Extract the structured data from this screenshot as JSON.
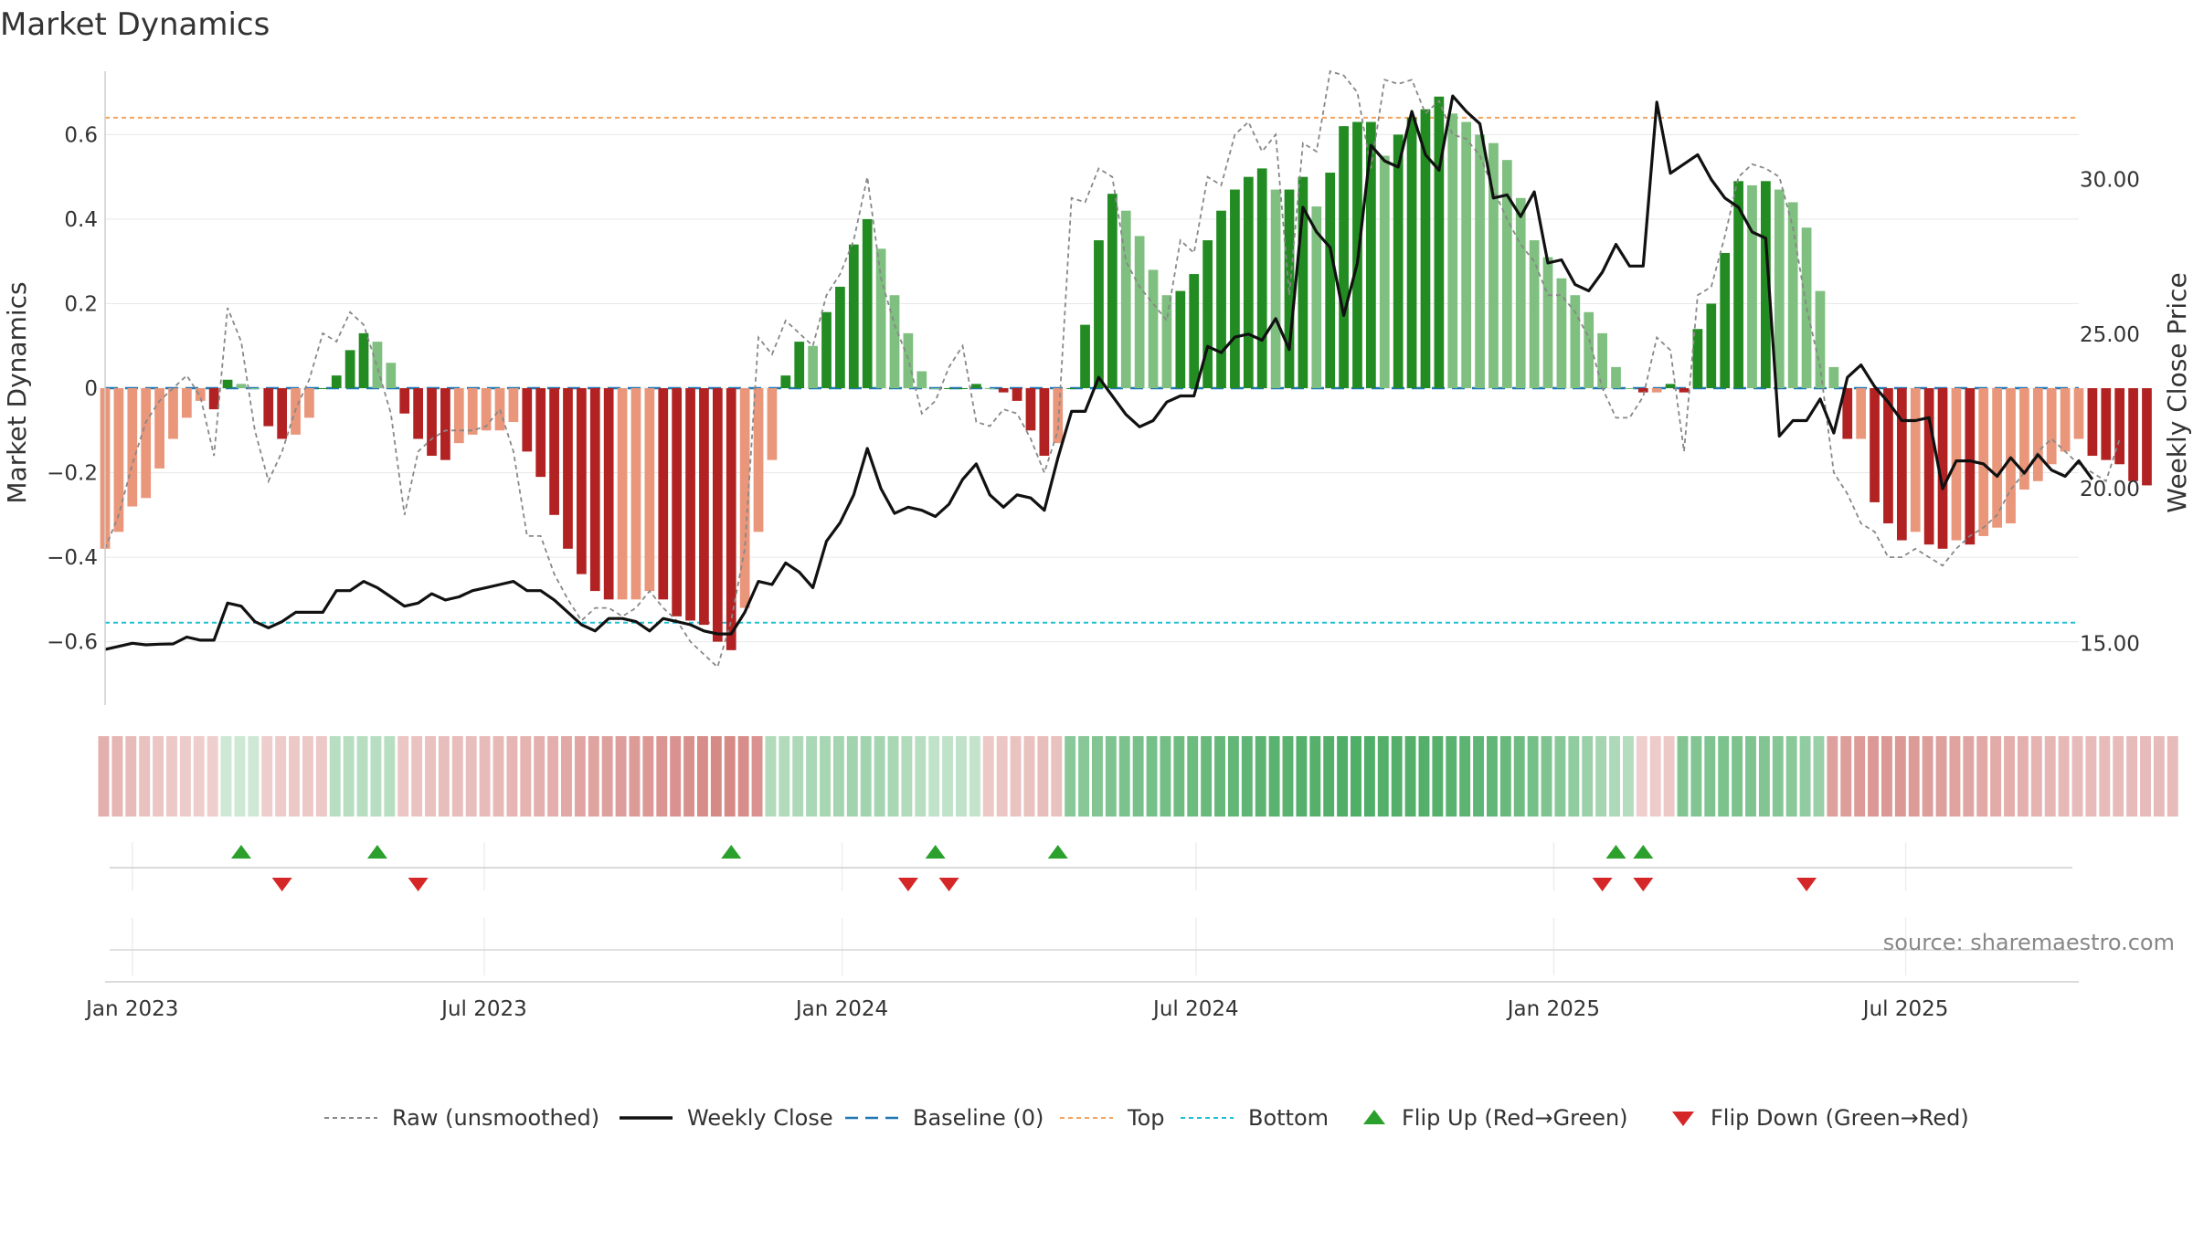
{
  "chart_data": {
    "type": "bar",
    "title": "Market Dynamics",
    "ylabel_left": "Market Dynamics",
    "ylabel_right": "Weekly Close Price",
    "ylim_left": [
      -0.75,
      0.75
    ],
    "ylim_right": [
      13.0,
      33.5
    ],
    "left_ticks": [
      {
        "v": 0.6,
        "label": "0.6"
      },
      {
        "v": 0.4,
        "label": "0.4"
      },
      {
        "v": 0.2,
        "label": "0.2"
      },
      {
        "v": 0,
        "label": "0"
      },
      {
        "v": -0.2,
        "label": "−0.2"
      },
      {
        "v": -0.4,
        "label": "−0.4"
      },
      {
        "v": -0.6,
        "label": "−0.6"
      }
    ],
    "right_ticks": [
      {
        "v": 30,
        "label": "30.00"
      },
      {
        "v": 25,
        "label": "25.00"
      },
      {
        "v": 20,
        "label": "20.00"
      },
      {
        "v": 15,
        "label": "15.00"
      }
    ],
    "x_ticks": [
      {
        "date": "2023-01-01",
        "label": "Jan 2023"
      },
      {
        "date": "2023-07-01",
        "label": "Jul 2023"
      },
      {
        "date": "2024-01-01",
        "label": "Jan 2024"
      },
      {
        "date": "2024-07-01",
        "label": "Jul 2024"
      },
      {
        "date": "2025-01-01",
        "label": "Jan 2025"
      },
      {
        "date": "2025-07-01",
        "label": "Jul 2025"
      }
    ],
    "x_start": "2022-12-18",
    "x_end": "2025-09-28",
    "start_date": "2022-12-18",
    "week_days": 7,
    "top_level": 0.64,
    "bottom_level": -0.555,
    "baseline": 0,
    "dynamics": [
      -0.38,
      -0.34,
      -0.28,
      -0.26,
      -0.19,
      -0.12,
      -0.07,
      -0.03,
      -0.05,
      0.02,
      0.01,
      0.0,
      -0.09,
      -0.12,
      -0.11,
      -0.07,
      0.0,
      0.03,
      0.09,
      0.13,
      0.11,
      0.06,
      -0.06,
      -0.12,
      -0.16,
      -0.17,
      -0.13,
      -0.11,
      -0.1,
      -0.1,
      -0.08,
      -0.15,
      -0.21,
      -0.3,
      -0.38,
      -0.44,
      -0.48,
      -0.5,
      -0.5,
      -0.5,
      -0.48,
      -0.5,
      -0.54,
      -0.55,
      -0.56,
      -0.6,
      -0.62,
      -0.52,
      -0.34,
      -0.17,
      0.03,
      0.11,
      0.1,
      0.18,
      0.24,
      0.34,
      0.4,
      0.33,
      0.22,
      0.13,
      0.04,
      0.0,
      0.0,
      0.0,
      0.01,
      0.0,
      -0.01,
      -0.03,
      -0.1,
      -0.16,
      -0.13,
      0.0,
      0.15,
      0.35,
      0.46,
      0.42,
      0.36,
      0.28,
      0.22,
      0.23,
      0.27,
      0.35,
      0.42,
      0.47,
      0.5,
      0.52,
      0.47,
      0.47,
      0.5,
      0.43,
      0.51,
      0.62,
      0.63,
      0.63,
      0.55,
      0.6,
      0.64,
      0.66,
      0.69,
      0.65,
      0.63,
      0.6,
      0.58,
      0.54,
      0.45,
      0.35,
      0.31,
      0.26,
      0.22,
      0.18,
      0.13,
      0.05,
      0.0,
      -0.01,
      -0.01,
      0.01,
      -0.01,
      0.14,
      0.2,
      0.32,
      0.49,
      0.48,
      0.49,
      0.47,
      0.44,
      0.38,
      0.23,
      0.05,
      -0.12,
      -0.12,
      -0.27,
      -0.32,
      -0.36,
      -0.34,
      -0.37,
      -0.38,
      -0.36,
      -0.37,
      -0.35,
      -0.33,
      -0.32,
      -0.24,
      -0.22,
      -0.18,
      -0.15,
      -0.12,
      -0.16,
      -0.17,
      -0.18,
      -0.22,
      -0.23
    ],
    "raw": [
      -0.38,
      -0.3,
      -0.18,
      -0.08,
      -0.03,
      0.0,
      0.03,
      -0.02,
      -0.16,
      0.19,
      0.11,
      -0.1,
      -0.22,
      -0.15,
      -0.05,
      0.02,
      0.13,
      0.11,
      0.18,
      0.15,
      0.05,
      -0.06,
      -0.3,
      -0.15,
      -0.12,
      -0.1,
      -0.1,
      -0.1,
      -0.09,
      -0.05,
      -0.15,
      -0.35,
      -0.35,
      -0.44,
      -0.5,
      -0.55,
      -0.52,
      -0.52,
      -0.54,
      -0.52,
      -0.48,
      -0.52,
      -0.55,
      -0.6,
      -0.63,
      -0.66,
      -0.55,
      -0.38,
      0.12,
      0.08,
      0.16,
      0.13,
      0.1,
      0.22,
      0.27,
      0.35,
      0.5,
      0.26,
      0.15,
      0.07,
      -0.06,
      -0.03,
      0.05,
      0.1,
      -0.08,
      -0.09,
      -0.05,
      -0.06,
      -0.12,
      -0.2,
      -0.1,
      0.45,
      0.44,
      0.52,
      0.5,
      0.3,
      0.24,
      0.2,
      0.16,
      0.35,
      0.32,
      0.5,
      0.48,
      0.6,
      0.63,
      0.56,
      0.6,
      0.22,
      0.58,
      0.56,
      0.75,
      0.74,
      0.7,
      0.52,
      0.73,
      0.72,
      0.73,
      0.65,
      0.68,
      0.6,
      0.59,
      0.55,
      0.47,
      0.4,
      0.34,
      0.3,
      0.22,
      0.22,
      0.18,
      0.12,
      0.0,
      -0.07,
      -0.07,
      -0.02,
      0.12,
      0.09,
      -0.15,
      0.22,
      0.24,
      0.36,
      0.5,
      0.53,
      0.52,
      0.5,
      0.38,
      0.19,
      0.05,
      -0.2,
      -0.25,
      -0.32,
      -0.34,
      -0.4,
      -0.4,
      -0.38,
      -0.4,
      -0.42,
      -0.38,
      -0.35,
      -0.33,
      -0.3,
      -0.24,
      -0.2,
      -0.15,
      -0.12,
      -0.15,
      -0.18,
      -0.2,
      -0.22,
      -0.12
    ],
    "close": [
      14.8,
      14.9,
      15.0,
      14.95,
      14.97,
      14.98,
      15.2,
      15.1,
      15.1,
      16.3,
      16.2,
      15.7,
      15.5,
      15.7,
      16.0,
      16.0,
      16.0,
      16.7,
      16.7,
      17.0,
      16.8,
      16.5,
      16.2,
      16.3,
      16.6,
      16.4,
      16.5,
      16.7,
      16.8,
      16.9,
      17.0,
      16.7,
      16.7,
      16.4,
      16.0,
      15.6,
      15.4,
      15.8,
      15.8,
      15.7,
      15.4,
      15.8,
      15.7,
      15.6,
      15.4,
      15.3,
      15.3,
      16.0,
      17.0,
      16.9,
      17.6,
      17.3,
      16.8,
      18.3,
      18.9,
      19.8,
      21.3,
      20.0,
      19.2,
      19.4,
      19.3,
      19.1,
      19.5,
      20.3,
      20.8,
      19.8,
      19.4,
      19.8,
      19.7,
      19.3,
      21.0,
      22.5,
      22.5,
      23.6,
      23.0,
      22.4,
      22.0,
      22.2,
      22.8,
      23.0,
      23.0,
      24.6,
      24.4,
      24.9,
      25.0,
      24.8,
      25.5,
      24.5,
      29.1,
      28.3,
      27.8,
      25.6,
      27.3,
      31.1,
      30.6,
      30.4,
      32.2,
      30.8,
      30.3,
      32.7,
      32.2,
      31.8,
      29.4,
      29.5,
      28.8,
      29.6,
      27.3,
      27.4,
      26.6,
      26.4,
      27.0,
      27.9,
      27.2,
      27.2,
      32.5,
      30.2,
      30.5,
      30.8,
      30.0,
      29.4,
      29.1,
      28.3,
      28.1,
      21.7,
      22.2,
      22.2,
      22.9,
      21.8,
      23.6,
      24.0,
      23.3,
      22.8,
      22.2,
      22.2,
      22.3,
      20.0,
      20.9,
      20.9,
      20.8,
      20.4,
      21.0,
      20.5,
      21.1,
      20.6,
      20.4,
      20.9,
      20.3
    ],
    "strip_levels": [
      -0.38,
      -0.34,
      -0.3,
      -0.26,
      -0.22,
      -0.2,
      -0.18,
      -0.16,
      -0.15,
      0.12,
      0.12,
      0.12,
      -0.16,
      -0.18,
      -0.2,
      -0.2,
      -0.2,
      0.25,
      0.25,
      0.25,
      0.25,
      0.25,
      -0.22,
      -0.24,
      -0.26,
      -0.28,
      -0.28,
      -0.28,
      -0.3,
      -0.32,
      -0.34,
      -0.36,
      -0.38,
      -0.4,
      -0.44,
      -0.46,
      -0.48,
      -0.5,
      -0.52,
      -0.54,
      -0.56,
      -0.58,
      -0.6,
      -0.62,
      -0.64,
      -0.66,
      -0.66,
      -0.64,
      -0.6,
      0.3,
      0.3,
      0.32,
      0.34,
      0.36,
      0.38,
      0.4,
      0.4,
      0.38,
      0.35,
      0.3,
      0.25,
      0.2,
      0.2,
      0.2,
      0.18,
      -0.2,
      -0.22,
      -0.24,
      -0.26,
      -0.28,
      -0.26,
      0.55,
      0.56,
      0.6,
      0.62,
      0.64,
      0.66,
      0.68,
      0.7,
      0.72,
      0.74,
      0.76,
      0.78,
      0.8,
      0.82,
      0.84,
      0.86,
      0.86,
      0.88,
      0.88,
      0.9,
      0.92,
      0.92,
      0.92,
      0.9,
      0.9,
      0.9,
      0.9,
      0.88,
      0.86,
      0.84,
      0.82,
      0.8,
      0.76,
      0.72,
      0.68,
      0.62,
      0.56,
      0.5,
      0.44,
      0.38,
      0.32,
      0.28,
      -0.15,
      -0.18,
      -0.2,
      0.6,
      0.6,
      0.62,
      0.64,
      0.64,
      0.62,
      0.6,
      0.58,
      0.55,
      0.5,
      0.45,
      -0.5,
      -0.52,
      -0.54,
      -0.56,
      -0.56,
      -0.56,
      -0.54,
      -0.52,
      -0.5,
      -0.48,
      -0.46,
      -0.44,
      -0.42,
      -0.4,
      -0.38,
      -0.36,
      -0.34,
      -0.32,
      -0.3,
      -0.3,
      -0.3,
      -0.3,
      -0.3,
      -0.3,
      -0.3,
      -0.3
    ],
    "flip_up_dates": [
      "2023-02-26",
      "2023-05-07",
      "2023-11-05",
      "2024-02-18",
      "2024-04-21",
      "2025-02-02",
      "2025-02-16"
    ],
    "flip_down_dates": [
      "2023-03-19",
      "2023-05-28",
      "2024-02-04",
      "2024-02-25",
      "2025-01-26",
      "2025-02-16",
      "2025-05-11"
    ],
    "legend": [
      {
        "key": "raw",
        "label": "Raw (unsmoothed)"
      },
      {
        "key": "close",
        "label": "Weekly Close"
      },
      {
        "key": "baseline",
        "label": "Baseline (0)"
      },
      {
        "key": "top",
        "label": "Top"
      },
      {
        "key": "bottom",
        "label": "Bottom"
      },
      {
        "key": "flipup",
        "label": "Flip Up (Red→Green)"
      },
      {
        "key": "flipdown",
        "label": "Flip Down (Green→Red)"
      }
    ],
    "source": "source: sharemaestro.com",
    "colors": {
      "pos_strong": "#228b22",
      "pos_weak": "#7fbf7f",
      "neg_strong": "#b22222",
      "neg_weak": "#e9967a",
      "raw": "#888888",
      "close": "#111111",
      "baseline": "#1f77b4",
      "top": "#f4a460",
      "bottom": "#20c0d0",
      "flip_up": "#2ca02c",
      "flip_down": "#d62728",
      "grid": "#e8e8e8"
    }
  }
}
